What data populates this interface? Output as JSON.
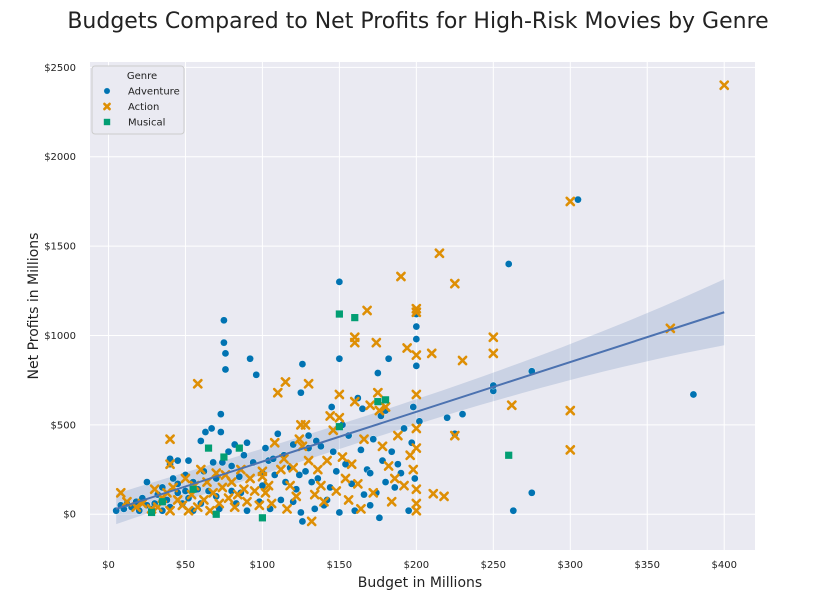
{
  "chart_data": {
    "type": "scatter",
    "title": "Budgets Compared to Net Profits for High-Risk Movies by Genre",
    "xlabel": "Budget in Millions",
    "ylabel": "Net Profits in Millions",
    "xlim": [
      -12,
      420
    ],
    "ylim": [
      -200,
      2530
    ],
    "x_ticks": [
      0,
      50,
      100,
      150,
      200,
      250,
      300,
      350,
      400
    ],
    "x_tick_labels": [
      "$0",
      "$50",
      "$100",
      "$150",
      "$200",
      "$250",
      "$300",
      "$350",
      "$400"
    ],
    "y_ticks": [
      0,
      500,
      1000,
      1500,
      2000,
      2500
    ],
    "y_tick_labels": [
      "$0",
      "$500",
      "$1000",
      "$1500",
      "$2000",
      "$2500"
    ],
    "grid": true,
    "legend": {
      "title": "Genre",
      "placement": "top-left"
    },
    "series": [
      {
        "name": "Adventure",
        "marker": "circle",
        "color": "#0173b2",
        "points": [
          [
            5,
            20
          ],
          [
            8,
            50
          ],
          [
            10,
            30
          ],
          [
            12,
            60
          ],
          [
            15,
            40
          ],
          [
            18,
            70
          ],
          [
            20,
            20
          ],
          [
            22,
            90
          ],
          [
            25,
            50
          ],
          [
            25,
            180
          ],
          [
            28,
            30
          ],
          [
            30,
            60
          ],
          [
            32,
            110
          ],
          [
            35,
            20
          ],
          [
            35,
            150
          ],
          [
            38,
            80
          ],
          [
            40,
            40
          ],
          [
            40,
            280
          ],
          [
            40,
            310
          ],
          [
            42,
            200
          ],
          [
            45,
            120
          ],
          [
            45,
            170
          ],
          [
            45,
            300
          ],
          [
            48,
            60
          ],
          [
            50,
            130
          ],
          [
            50,
            220
          ],
          [
            52,
            90
          ],
          [
            52,
            300
          ],
          [
            55,
            20
          ],
          [
            55,
            180
          ],
          [
            58,
            140
          ],
          [
            60,
            60
          ],
          [
            60,
            410
          ],
          [
            62,
            240
          ],
          [
            63,
            460
          ],
          [
            65,
            130
          ],
          [
            67,
            480
          ],
          [
            68,
            290
          ],
          [
            70,
            100
          ],
          [
            70,
            200
          ],
          [
            72,
            30
          ],
          [
            73,
            460
          ],
          [
            73,
            560
          ],
          [
            74,
            290
          ],
          [
            75,
            1085
          ],
          [
            75,
            960
          ],
          [
            76,
            900
          ],
          [
            76,
            810
          ],
          [
            78,
            350
          ],
          [
            80,
            130
          ],
          [
            80,
            270
          ],
          [
            82,
            390
          ],
          [
            83,
            60
          ],
          [
            85,
            210
          ],
          [
            86,
            120
          ],
          [
            88,
            330
          ],
          [
            90,
            20
          ],
          [
            90,
            400
          ],
          [
            92,
            870
          ],
          [
            94,
            290
          ],
          [
            96,
            780
          ],
          [
            98,
            70
          ],
          [
            100,
            160
          ],
          [
            100,
            230
          ],
          [
            102,
            370
          ],
          [
            104,
            300
          ],
          [
            105,
            30
          ],
          [
            107,
            310
          ],
          [
            108,
            220
          ],
          [
            110,
            450
          ],
          [
            112,
            80
          ],
          [
            114,
            330
          ],
          [
            115,
            180
          ],
          [
            118,
            260
          ],
          [
            120,
            70
          ],
          [
            120,
            390
          ],
          [
            122,
            140
          ],
          [
            124,
            220
          ],
          [
            125,
            10
          ],
          [
            125,
            680
          ],
          [
            126,
            840
          ],
          [
            126,
            -40
          ],
          [
            128,
            240
          ],
          [
            130,
            370
          ],
          [
            130,
            440
          ],
          [
            132,
            180
          ],
          [
            134,
            30
          ],
          [
            135,
            410
          ],
          [
            136,
            200
          ],
          [
            138,
            380
          ],
          [
            140,
            50
          ],
          [
            142,
            80
          ],
          [
            144,
            150
          ],
          [
            145,
            600
          ],
          [
            146,
            350
          ],
          [
            148,
            240
          ],
          [
            150,
            10
          ],
          [
            150,
            1300
          ],
          [
            150,
            870
          ],
          [
            152,
            500
          ],
          [
            154,
            280
          ],
          [
            156,
            440
          ],
          [
            158,
            170
          ],
          [
            160,
            20
          ],
          [
            162,
            650
          ],
          [
            164,
            360
          ],
          [
            165,
            590
          ],
          [
            166,
            110
          ],
          [
            168,
            250
          ],
          [
            170,
            50
          ],
          [
            170,
            230
          ],
          [
            172,
            420
          ],
          [
            174,
            120
          ],
          [
            175,
            790
          ],
          [
            176,
            -20
          ],
          [
            177,
            550
          ],
          [
            178,
            300
          ],
          [
            180,
            180
          ],
          [
            180,
            580
          ],
          [
            182,
            870
          ],
          [
            184,
            350
          ],
          [
            186,
            150
          ],
          [
            188,
            280
          ],
          [
            190,
            230
          ],
          [
            192,
            480
          ],
          [
            195,
            20
          ],
          [
            197,
            400
          ],
          [
            198,
            600
          ],
          [
            199,
            200
          ],
          [
            200,
            830
          ],
          [
            200,
            980
          ],
          [
            200,
            1050
          ],
          [
            200,
            1120
          ],
          [
            202,
            520
          ],
          [
            220,
            540
          ],
          [
            225,
            450
          ],
          [
            230,
            560
          ],
          [
            250,
            690
          ],
          [
            250,
            720
          ],
          [
            260,
            1400
          ],
          [
            263,
            20
          ],
          [
            275,
            120
          ],
          [
            275,
            800
          ],
          [
            305,
            1760
          ],
          [
            380,
            670
          ]
        ]
      },
      {
        "name": "Action",
        "marker": "x",
        "color": "#de8f05",
        "points": [
          [
            8,
            120
          ],
          [
            12,
            70
          ],
          [
            18,
            40
          ],
          [
            22,
            60
          ],
          [
            28,
            30
          ],
          [
            30,
            140
          ],
          [
            32,
            40
          ],
          [
            35,
            90
          ],
          [
            38,
            120
          ],
          [
            40,
            20
          ],
          [
            40,
            280
          ],
          [
            40,
            420
          ],
          [
            42,
            150
          ],
          [
            45,
            80
          ],
          [
            48,
            50
          ],
          [
            50,
            200
          ],
          [
            52,
            20
          ],
          [
            54,
            110
          ],
          [
            56,
            160
          ],
          [
            58,
            40
          ],
          [
            58,
            730
          ],
          [
            60,
            250
          ],
          [
            62,
            80
          ],
          [
            64,
            180
          ],
          [
            66,
            20
          ],
          [
            68,
            120
          ],
          [
            70,
            230
          ],
          [
            72,
            60
          ],
          [
            74,
            150
          ],
          [
            76,
            220
          ],
          [
            78,
            90
          ],
          [
            80,
            180
          ],
          [
            82,
            40
          ],
          [
            84,
            110
          ],
          [
            86,
            250
          ],
          [
            88,
            140
          ],
          [
            90,
            70
          ],
          [
            92,
            200
          ],
          [
            95,
            130
          ],
          [
            98,
            50
          ],
          [
            100,
            210
          ],
          [
            100,
            240
          ],
          [
            102,
            120
          ],
          [
            104,
            160
          ],
          [
            106,
            60
          ],
          [
            108,
            400
          ],
          [
            110,
            680
          ],
          [
            112,
            250
          ],
          [
            114,
            310
          ],
          [
            115,
            740
          ],
          [
            116,
            30
          ],
          [
            118,
            160
          ],
          [
            120,
            260
          ],
          [
            122,
            100
          ],
          [
            124,
            420
          ],
          [
            125,
            500
          ],
          [
            126,
            380
          ],
          [
            128,
            500
          ],
          [
            130,
            300
          ],
          [
            130,
            730
          ],
          [
            132,
            -40
          ],
          [
            134,
            110
          ],
          [
            136,
            250
          ],
          [
            138,
            160
          ],
          [
            140,
            70
          ],
          [
            142,
            300
          ],
          [
            144,
            550
          ],
          [
            146,
            470
          ],
          [
            148,
            130
          ],
          [
            150,
            670
          ],
          [
            150,
            540
          ],
          [
            152,
            320
          ],
          [
            154,
            200
          ],
          [
            156,
            80
          ],
          [
            158,
            280
          ],
          [
            160,
            990
          ],
          [
            160,
            960
          ],
          [
            160,
            630
          ],
          [
            162,
            170
          ],
          [
            164,
            30
          ],
          [
            166,
            420
          ],
          [
            168,
            1140
          ],
          [
            170,
            610
          ],
          [
            172,
            120
          ],
          [
            174,
            960
          ],
          [
            175,
            680
          ],
          [
            176,
            580
          ],
          [
            178,
            380
          ],
          [
            180,
            600
          ],
          [
            182,
            270
          ],
          [
            184,
            70
          ],
          [
            186,
            200
          ],
          [
            188,
            440
          ],
          [
            190,
            1330
          ],
          [
            192,
            160
          ],
          [
            194,
            930
          ],
          [
            196,
            330
          ],
          [
            198,
            250
          ],
          [
            200,
            20
          ],
          [
            200,
            60
          ],
          [
            200,
            140
          ],
          [
            200,
            370
          ],
          [
            200,
            480
          ],
          [
            200,
            670
          ],
          [
            200,
            890
          ],
          [
            200,
            1130
          ],
          [
            200,
            1150
          ],
          [
            210,
            900
          ],
          [
            211,
            115
          ],
          [
            215,
            1460
          ],
          [
            218,
            100
          ],
          [
            225,
            1290
          ],
          [
            225,
            440
          ],
          [
            230,
            860
          ],
          [
            250,
            990
          ],
          [
            250,
            900
          ],
          [
            262,
            610
          ],
          [
            300,
            580
          ],
          [
            300,
            360
          ],
          [
            300,
            1750
          ],
          [
            365,
            1040
          ],
          [
            400,
            2400
          ]
        ]
      },
      {
        "name": "Musical",
        "marker": "square",
        "color": "#029e73",
        "points": [
          [
            28,
            10
          ],
          [
            35,
            70
          ],
          [
            55,
            140
          ],
          [
            65,
            370
          ],
          [
            70,
            0
          ],
          [
            75,
            320
          ],
          [
            85,
            370
          ],
          [
            100,
            -20
          ],
          [
            150,
            1120
          ],
          [
            150,
            490
          ],
          [
            160,
            1100
          ],
          [
            175,
            630
          ],
          [
            180,
            640
          ],
          [
            260,
            330
          ]
        ]
      }
    ],
    "regression": {
      "x": [
        5,
        400
      ],
      "y": [
        30,
        1130
      ],
      "color": "#4c72b0",
      "confidence_band_lower": [
        -60,
        950
      ],
      "confidence_band_upper": [
        110,
        1320
      ]
    }
  }
}
